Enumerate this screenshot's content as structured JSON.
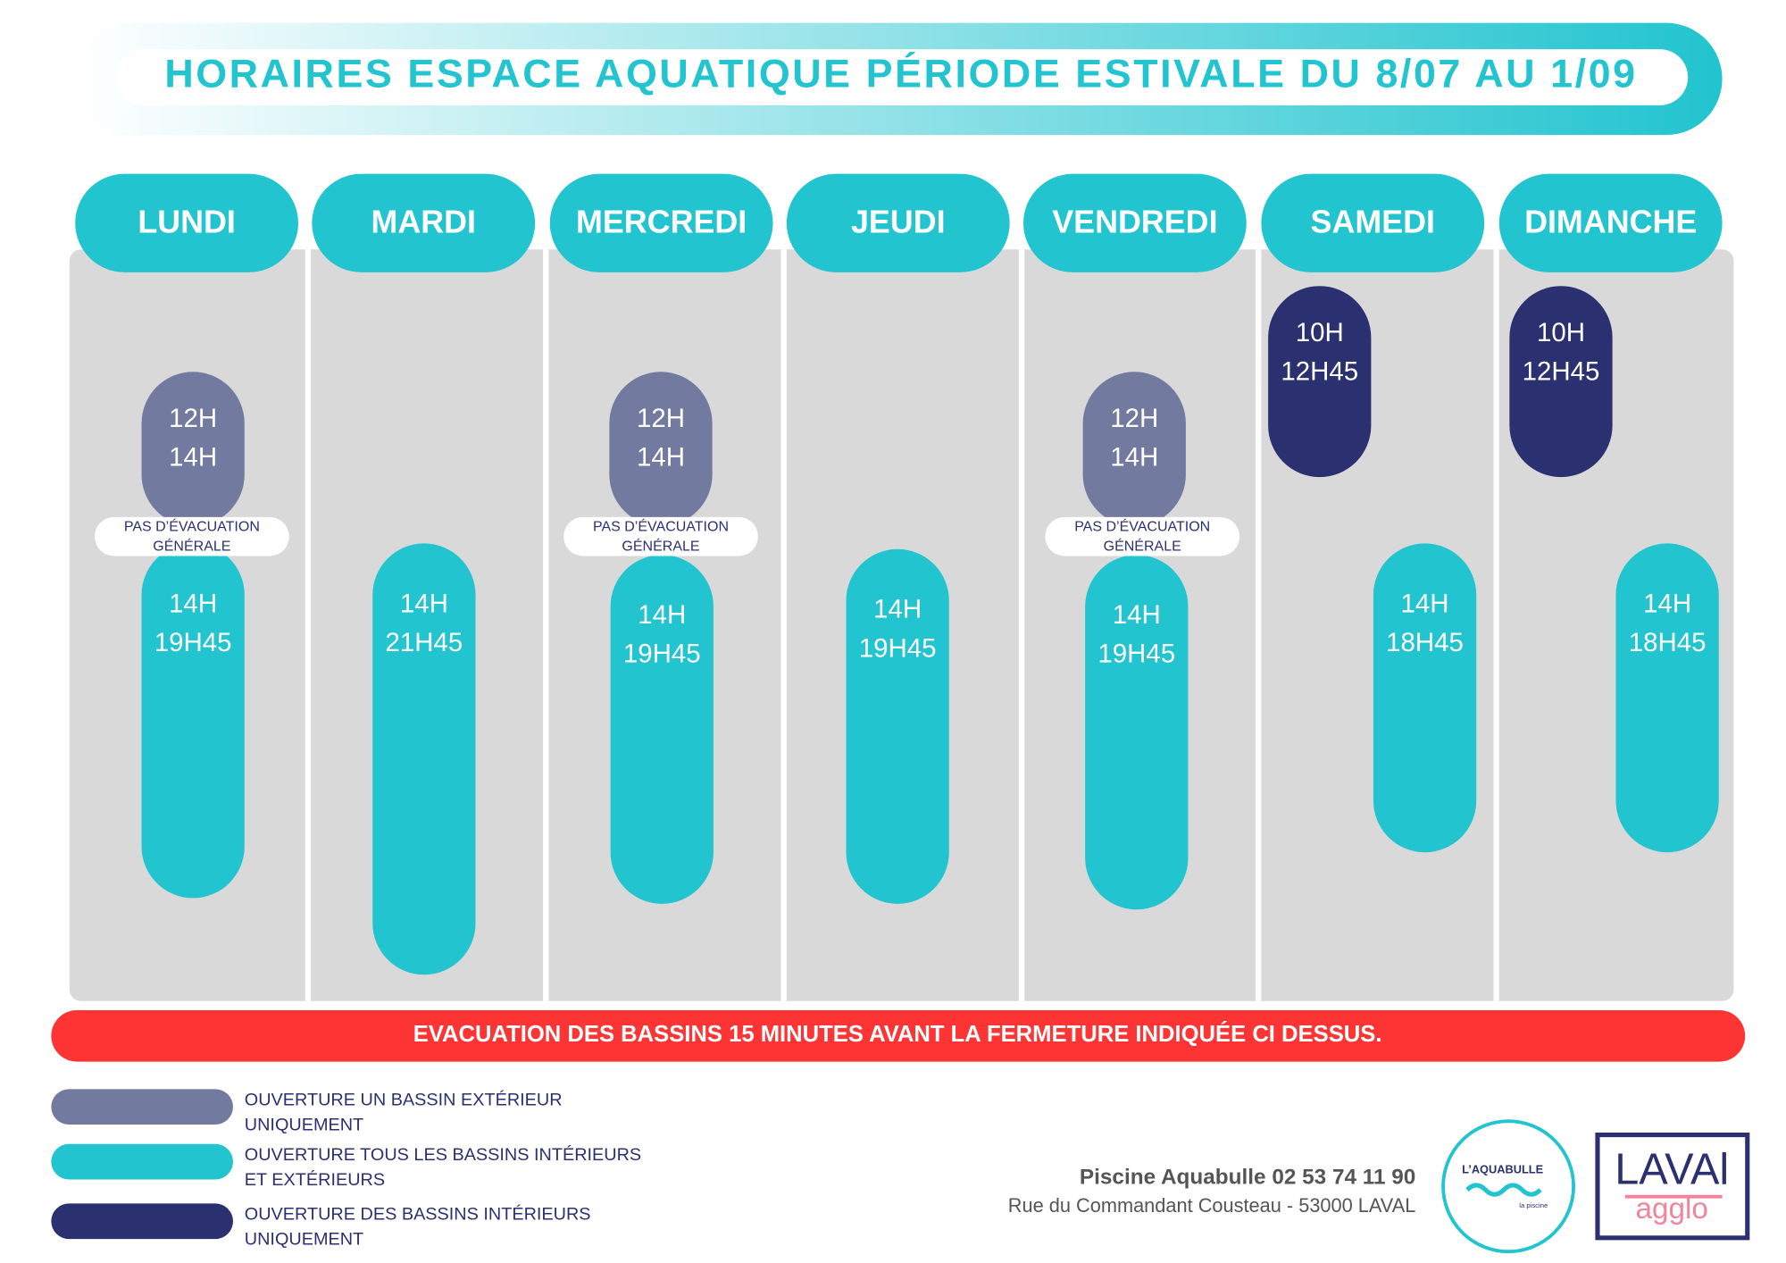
{
  "header": {
    "title": "HORAIRES ESPACE AQUATIQUE PÉRIODE ESTIVALE DU 8/07 AU 1/09"
  },
  "days": [
    {
      "name": "LUNDI",
      "slots": [
        {
          "color": "#737a9f",
          "start": "12H",
          "end": "14H"
        },
        {
          "color": "#21c4cf",
          "start": "14H",
          "end": "19H45"
        }
      ],
      "note": [
        "PAS D’ÉVACUATION",
        "GÉNÉRALE"
      ]
    },
    {
      "name": "MARDI",
      "slots": [
        {
          "color": "#21c4cf",
          "start": "14H",
          "end": "21H45"
        }
      ]
    },
    {
      "name": "MERCREDI",
      "slots": [
        {
          "color": "#737a9f",
          "start": "12H",
          "end": "14H"
        },
        {
          "color": "#21c4cf",
          "start": "14H",
          "end": "19H45"
        }
      ],
      "note": [
        "PAS D’ÉVACUATION",
        "GÉNÉRALE"
      ]
    },
    {
      "name": "JEUDI",
      "slots": [
        {
          "color": "#21c4cf",
          "start": "14H",
          "end": "19H45"
        }
      ]
    },
    {
      "name": "VENDREDI",
      "slots": [
        {
          "color": "#737a9f",
          "start": "12H",
          "end": "14H"
        },
        {
          "color": "#21c4cf",
          "start": "14H",
          "end": "19H45"
        }
      ],
      "note": [
        "PAS D’ÉVACUATION",
        "GÉNÉRALE"
      ]
    },
    {
      "name": "SAMEDI",
      "slots": [
        {
          "color": "#2b3070",
          "start": "10H",
          "end": "12H45"
        },
        {
          "color": "#21c4cf",
          "start": "14H",
          "end": "18H45"
        }
      ]
    },
    {
      "name": "DIMANCHE",
      "slots": [
        {
          "color": "#2b3070",
          "start": "10H",
          "end": "12H45"
        },
        {
          "color": "#21c4cf",
          "start": "14H",
          "end": "18H45"
        }
      ]
    }
  ],
  "banner": "EVACUATION DES BASSINS  15 MINUTES AVANT LA FERMETURE INDIQUÉE CI DESSUS.",
  "legend": [
    {
      "color": "#737a9f",
      "lines": [
        "OUVERTURE UN BASSIN EXTÉRIEUR",
        "UNIQUEMENT"
      ]
    },
    {
      "color": "#21c4cf",
      "lines": [
        "OUVERTURE TOUS LES BASSINS INTÉRIEURS",
        "ET EXTÉRIEURS"
      ]
    },
    {
      "color": "#2b3070",
      "lines": [
        "OUVERTURE DES BASSINS INTÉRIEURS",
        "UNIQUEMENT"
      ]
    }
  ],
  "contact": {
    "name": "Piscine Aquabulle 02 53 74 11 90",
    "address": "Rue du Commandant Cousteau - 53000 LAVAL"
  },
  "logos": {
    "aquabulle": "L’AQUABULLE",
    "aquabulle_sub": "la piscine",
    "laval": "LAVAl",
    "agglo": "agglo"
  }
}
